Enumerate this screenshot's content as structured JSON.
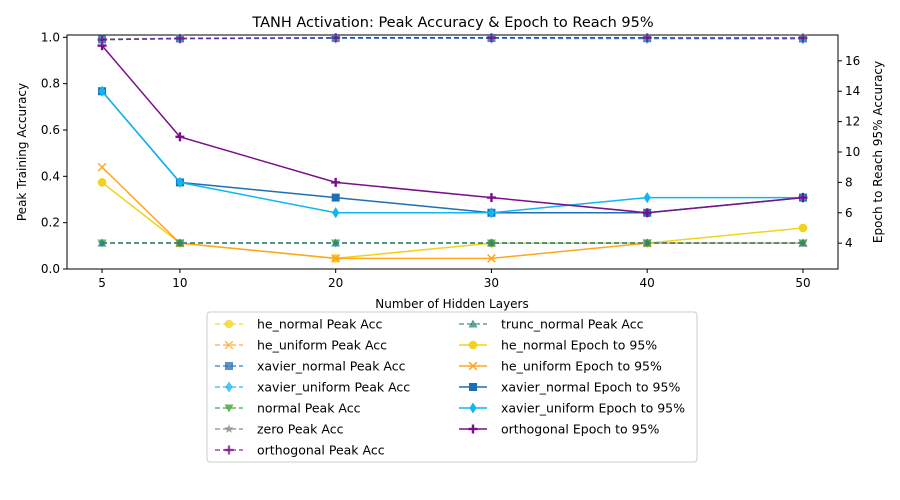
{
  "chart_data": {
    "type": "line",
    "title": "TANH Activation: Peak Accuracy & Epoch to Reach 95%",
    "xlabel": "Number of Hidden Layers",
    "ylabel_left": "Peak Training Accuracy",
    "ylabel_right": "Epoch to Reach 95% Accuracy",
    "x": [
      5,
      10,
      20,
      30,
      40,
      50
    ],
    "x_ticks": [
      "5",
      "10",
      "20",
      "30",
      "40",
      "50"
    ],
    "ylim_left": [
      0,
      1.01
    ],
    "yticks_left": [
      "0.0",
      "0.2",
      "0.4",
      "0.6",
      "0.8",
      "1.0"
    ],
    "ylim_right": [
      2.3,
      17.7
    ],
    "yticks_right": [
      "4",
      "6",
      "8",
      "10",
      "12",
      "14",
      "16"
    ],
    "legend_placement": "below plot, two columns",
    "accuracy_series": [
      {
        "name": "he_normal Peak Acc",
        "color": "#f2d21b",
        "marker": "circle",
        "values": [
          0.991,
          0.996,
          0.998,
          0.998,
          0.998,
          0.997
        ]
      },
      {
        "name": "he_uniform Peak Acc",
        "color": "#ffa620",
        "marker": "x",
        "values": [
          0.992,
          0.996,
          0.998,
          0.998,
          0.998,
          0.997
        ]
      },
      {
        "name": "xavier_normal Peak Acc",
        "color": "#1f6fb4",
        "marker": "square",
        "values": [
          0.991,
          0.995,
          0.997,
          0.997,
          0.996,
          0.995
        ]
      },
      {
        "name": "xavier_uniform Peak Acc",
        "color": "#0fb6f0",
        "marker": "diamond",
        "values": [
          0.99,
          0.994,
          0.996,
          0.996,
          0.994,
          0.993
        ]
      },
      {
        "name": "normal Peak Acc",
        "color": "#2ca02c",
        "marker": "triangle-down",
        "values": [
          0.112,
          0.112,
          0.112,
          0.112,
          0.112,
          0.112
        ]
      },
      {
        "name": "zero Peak Acc",
        "color": "#7f7f7f",
        "marker": "star",
        "values": [
          0.112,
          0.112,
          0.112,
          0.112,
          0.112,
          0.112
        ]
      },
      {
        "name": "orthogonal Peak Acc",
        "color": "#7b0f8a",
        "marker": "plus",
        "values": [
          0.99,
          0.995,
          0.998,
          0.998,
          0.998,
          0.997
        ]
      },
      {
        "name": "trunc_normal Peak Acc",
        "color": "#23867e",
        "marker": "triangle-up",
        "values": [
          0.112,
          0.112,
          0.112,
          0.112,
          0.112,
          0.112
        ]
      }
    ],
    "epoch_series": [
      {
        "name": "he_normal Epoch to 95%",
        "color": "#f2d21b",
        "marker": "circle",
        "values": [
          8,
          4,
          3,
          4,
          4,
          5
        ]
      },
      {
        "name": "he_uniform Epoch to 95%",
        "color": "#ffa620",
        "marker": "x",
        "values": [
          9,
          4,
          3,
          3,
          4,
          4
        ]
      },
      {
        "name": "xavier_normal Epoch to 95%",
        "color": "#1f6fb4",
        "marker": "square",
        "values": [
          14,
          8,
          7,
          6,
          6,
          7
        ]
      },
      {
        "name": "xavier_uniform Epoch to 95%",
        "color": "#0fb6f0",
        "marker": "diamond",
        "values": [
          14,
          8,
          6,
          6,
          7,
          7
        ]
      },
      {
        "name": "orthogonal Epoch to 95%",
        "color": "#7b0f8a",
        "marker": "plus",
        "values": [
          17,
          11,
          8,
          7,
          6,
          7
        ]
      }
    ]
  }
}
